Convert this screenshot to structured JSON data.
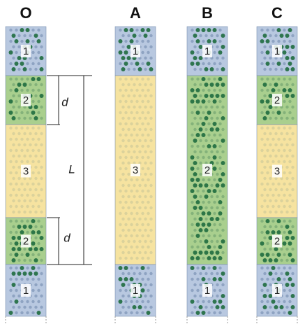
{
  "columns": [
    {
      "label": "O",
      "regions": [
        "1",
        "2",
        "3",
        "2",
        "1"
      ]
    },
    {
      "label": "A",
      "regions": [
        "1",
        "3",
        "1"
      ]
    },
    {
      "label": "B",
      "regions": [
        "1",
        "2",
        "1"
      ]
    },
    {
      "label": "C",
      "regions": [
        "1",
        "2",
        "3",
        "2",
        "1"
      ]
    }
  ],
  "dimensions": [
    "d",
    "L",
    "d"
  ]
}
